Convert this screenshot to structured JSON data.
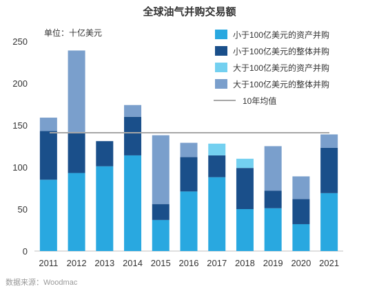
{
  "chart_data": {
    "type": "bar",
    "stacked": true,
    "title": "全球油气并购交易额",
    "unit_label": "单位：十亿美元",
    "categories": [
      "2011",
      "2012",
      "2013",
      "2014",
      "2015",
      "2016",
      "2017",
      "2018",
      "2019",
      "2020",
      "2021"
    ],
    "ylim": [
      0,
      250
    ],
    "yticks": [
      0,
      50,
      100,
      150,
      200,
      250
    ],
    "series": [
      {
        "name": "小于100亿美元的资产并购",
        "color": "#29a8e0",
        "values": [
          85,
          93,
          101,
          114,
          37,
          71,
          88,
          50,
          51,
          32,
          69
        ]
      },
      {
        "name": "小于100亿美元的整体并购",
        "color": "#1a4f8a",
        "values": [
          58,
          49,
          30,
          46,
          19,
          41,
          26,
          49,
          21,
          30,
          54
        ]
      },
      {
        "name": "大于100亿美元的资产并购",
        "color": "#73d0f0",
        "values": [
          0,
          0,
          0,
          0,
          0,
          0,
          14,
          11,
          0,
          0,
          0
        ]
      },
      {
        "name": "大于100亿美元的整体并购",
        "color": "#7a9fcc",
        "values": [
          16,
          97,
          0,
          14,
          82,
          17,
          0,
          0,
          53,
          27,
          16
        ]
      }
    ],
    "average_line": {
      "name": "10年均值",
      "value": 141,
      "color": "#a6a6a6"
    },
    "legend_position": "top-right",
    "grid": false
  },
  "source": "数据来源：Woodmac"
}
